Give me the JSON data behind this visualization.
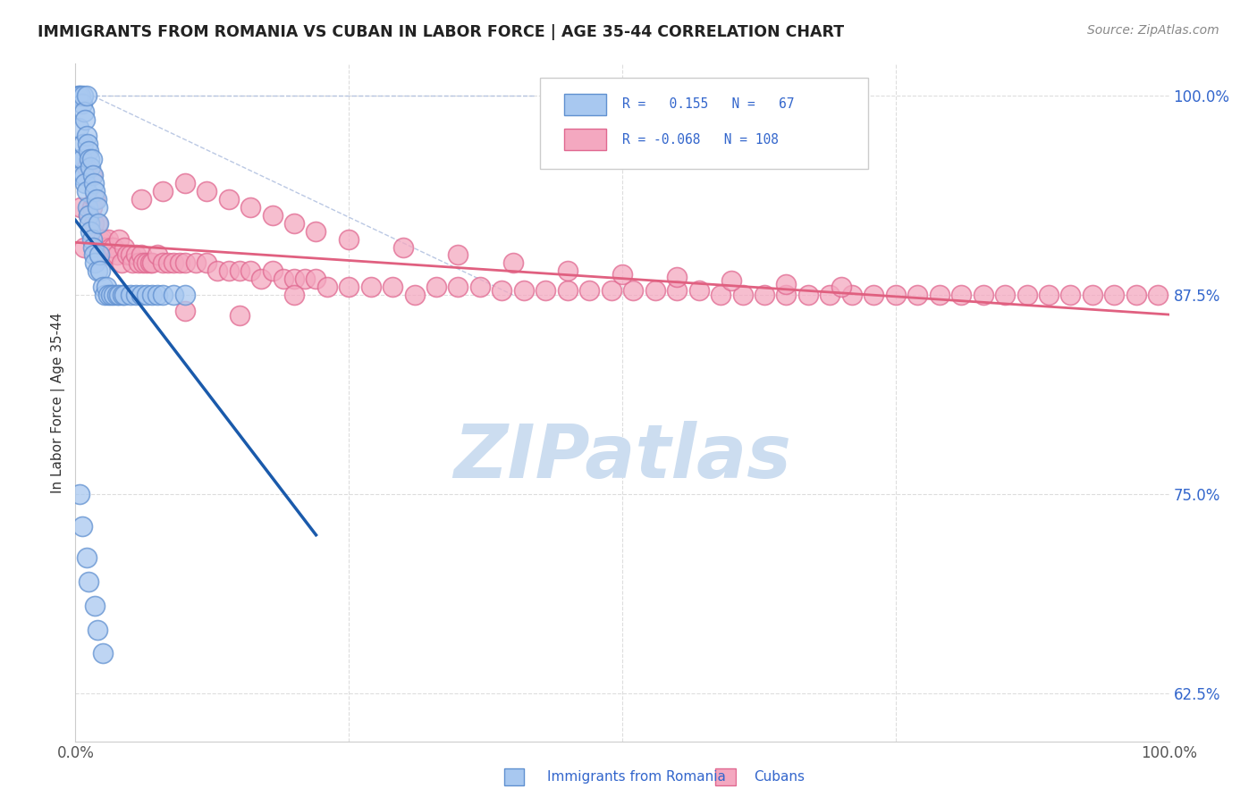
{
  "title": "IMMIGRANTS FROM ROMANIA VS CUBAN IN LABOR FORCE | AGE 35-44 CORRELATION CHART",
  "source_text": "Source: ZipAtlas.com",
  "ylabel": "In Labor Force | Age 35-44",
  "xlim": [
    0.0,
    1.0
  ],
  "ylim": [
    0.595,
    1.02
  ],
  "yticks": [
    0.625,
    0.75,
    0.875,
    1.0
  ],
  "ytick_labels": [
    "62.5%",
    "75.0%",
    "87.5%",
    "100.0%"
  ],
  "xticks": [
    0.0,
    0.25,
    0.5,
    0.75,
    1.0
  ],
  "xtick_labels": [
    "0.0%",
    "",
    "",
    "",
    "100.0%"
  ],
  "romania_color": "#a8c8f0",
  "cuba_color": "#f4a8c0",
  "romania_edge": "#6090d0",
  "cuba_edge": "#e06890",
  "trend_romania_color": "#1a5aab",
  "trend_cuba_color": "#e06080",
  "diag_color": "#aabbdd",
  "watermark_color": "#ccddf0",
  "background_color": "#ffffff",
  "grid_color": "#dddddd"
}
